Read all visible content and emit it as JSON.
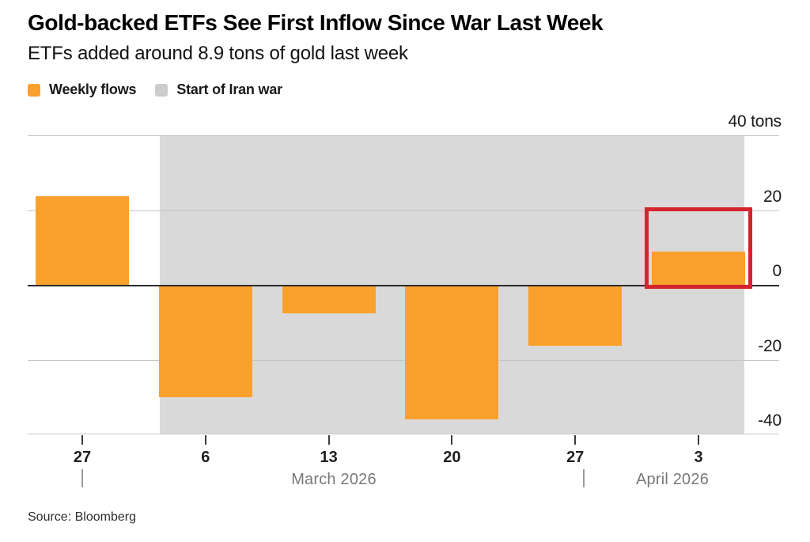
{
  "header": {
    "title": "Gold-backed ETFs See First Inflow Since War Last Week",
    "subtitle": "ETFs added around 8.9 tons of gold last week"
  },
  "legend": [
    {
      "label": "Weekly flows",
      "color": "#faa12d"
    },
    {
      "label": "Start of Iran war",
      "color": "#cccccc"
    }
  ],
  "chart_data": {
    "type": "bar",
    "title": "Gold-backed ETFs weekly flows",
    "unit": "tons",
    "categories": [
      "27",
      "6",
      "13",
      "20",
      "27",
      "3"
    ],
    "values": [
      23.8,
      -30,
      -7.7,
      -35.9,
      -16.4,
      8.9
    ],
    "series_name": "Weekly flows",
    "bar_color": "#faa12d",
    "ylim": [
      -40,
      40
    ],
    "y_axis_side": "right",
    "yticks": [
      {
        "value": 40,
        "label": "40 tons"
      },
      {
        "value": 20,
        "label": "20"
      },
      {
        "value": 0,
        "label": "0"
      },
      {
        "value": -20,
        "label": "-20"
      },
      {
        "value": -40,
        "label": "-40"
      }
    ],
    "shaded_band": {
      "label": "Start of Iran war",
      "from_index": 1,
      "to_index": 5,
      "color": "#d9d9d9"
    },
    "highlight_box": {
      "index": 5,
      "color": "#d6242e",
      "meaning": "First inflow since war"
    },
    "month_row": {
      "separator_color": "#9b9b9b",
      "labels": [
        "March 2026",
        "April 2026"
      ]
    },
    "grid": "horizontal",
    "zero_line_color": "#2b2b2b",
    "gridline_color": "#c5c5c5"
  },
  "footer": {
    "source": "Source: Bloomberg"
  }
}
